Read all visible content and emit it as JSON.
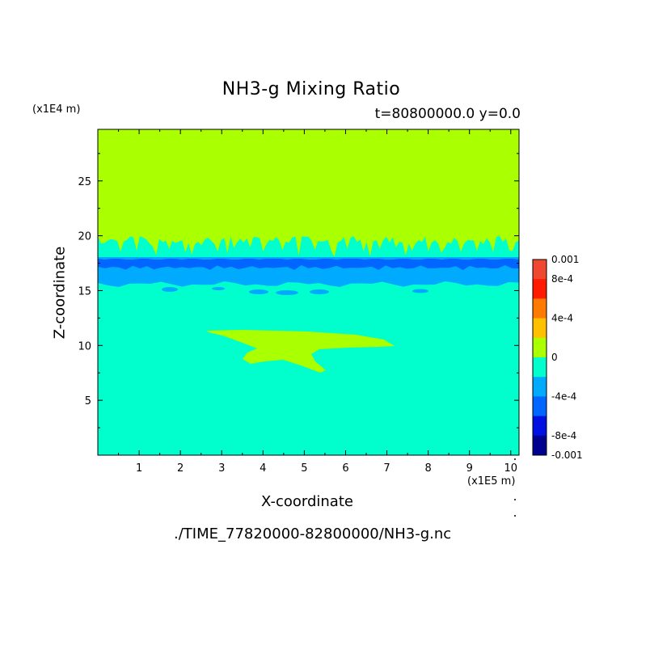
{
  "chart_data": {
    "type": "heatmap",
    "title": "NH3-g Mixing Ratio",
    "subtitle": "t=80800000.0 y=0.0",
    "xlabel": "X-coordinate",
    "ylabel": "Z-coordinate",
    "x_unit": "(x1E5 m)",
    "y_unit": "(x1E4 m)",
    "xlim": [
      0,
      10.2
    ],
    "ylim": [
      0,
      29.7
    ],
    "xticks": [
      "1",
      "2",
      "3",
      "4",
      "5",
      "6",
      "7",
      "8",
      "9",
      "10"
    ],
    "yticks": [
      "5",
      "10",
      "15",
      "20",
      "25"
    ],
    "colorbar": {
      "range": [
        -0.001,
        0.001
      ],
      "labels": [
        "0.001",
        "8e-4",
        "4e-4",
        "0",
        "-4e-4",
        "-8e-4",
        "-0.001"
      ],
      "colors": [
        "#f04830",
        "#ff1a00",
        "#ff7a00",
        "#ffc000",
        "#aaff00",
        "#00ffcc",
        "#00aaff",
        "#0066ff",
        "#0010e0",
        "#000090"
      ]
    },
    "regions": [
      {
        "level": "0 to 2e-4",
        "color": "#aaff00",
        "z_range": [
          20,
          29.7
        ],
        "note": "upper layer"
      },
      {
        "level": "-2e-4 to 0",
        "color": "#00ffcc",
        "z_range": [
          0,
          15.5
        ],
        "note": "lower layer"
      },
      {
        "level": "-6e-4 to -4e-4",
        "color": "#00aaff",
        "z_range": [
          15.5,
          18
        ],
        "note": "band"
      },
      {
        "level": "-8e-4 to -6e-4",
        "color": "#0066ff",
        "z_range": [
          17,
          18
        ],
        "note": "dark band"
      },
      {
        "level": "0 to 2e-4",
        "color": "#aaff00",
        "x_range": [
          2.6,
          7.1
        ],
        "z_range": [
          8,
          11.5
        ],
        "note": "tongue"
      }
    ]
  },
  "footer": "./TIME_77820000-82800000/NH3-g.nc"
}
